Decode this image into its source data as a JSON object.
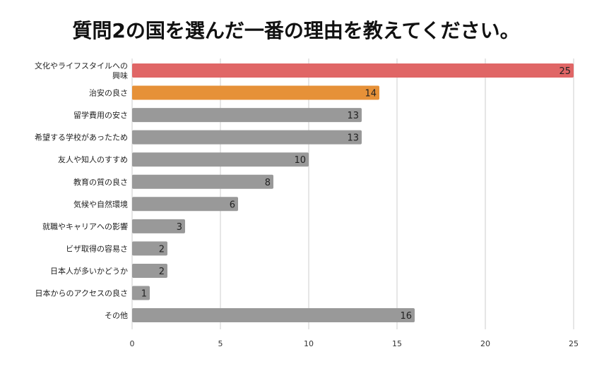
{
  "chart_data": {
    "type": "bar",
    "orientation": "horizontal",
    "title": "質問2の国を選んだ一番の理由を教えてください。",
    "categories": [
      "文化やライフスタイルへの興味",
      "治安の良さ",
      "留学費用の安さ",
      "希望する学校があったため",
      "友人や知人のすすめ",
      "教育の質の良さ",
      "気候や自然環境",
      "就職やキャリアへの影響",
      "ビザ取得の容易さ",
      "日本人が多いかどうか",
      "日本からのアクセスの良さ",
      "その他"
    ],
    "category_lines": [
      [
        "文化やライフスタイルへの",
        "興味"
      ],
      [
        "治安の良さ"
      ],
      [
        "留学費用の安さ"
      ],
      [
        "希望する学校があったため"
      ],
      [
        "友人や知人のすすめ"
      ],
      [
        "教育の質の良さ"
      ],
      [
        "気候や自然環境"
      ],
      [
        "就職やキャリアへの影響"
      ],
      [
        "ビザ取得の容易さ"
      ],
      [
        "日本人が多いかどうか"
      ],
      [
        "日本からのアクセスの良さ"
      ],
      [
        "その他"
      ]
    ],
    "values": [
      25,
      14,
      13,
      13,
      10,
      8,
      6,
      3,
      2,
      2,
      1,
      16
    ],
    "bar_colors": [
      "#e06666",
      "#e69138",
      "#999999",
      "#999999",
      "#999999",
      "#999999",
      "#999999",
      "#999999",
      "#999999",
      "#999999",
      "#999999",
      "#999999"
    ],
    "xlim": [
      0,
      25
    ],
    "xticks": [
      0,
      5,
      10,
      15,
      20,
      25
    ],
    "xlabel": "",
    "ylabel": "",
    "grid": true,
    "gridline_color": "#cccccc",
    "label_color": "#222222"
  }
}
